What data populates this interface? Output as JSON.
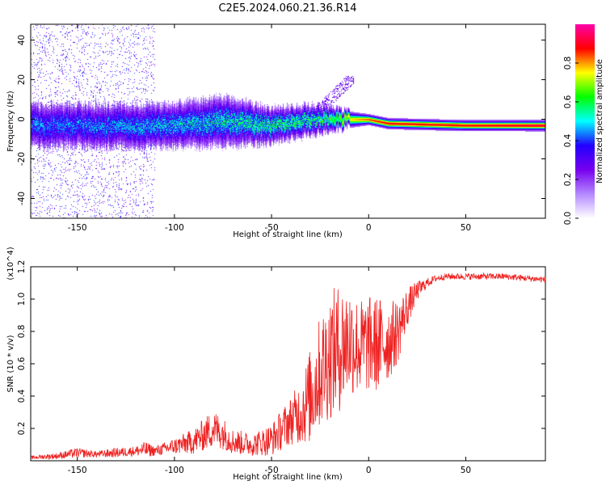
{
  "title": "C2E5.2024.060.21.36.R14",
  "colors": {
    "signal": "#ee2222",
    "background": "#ffffff",
    "colormap": [
      "#ffffff",
      "#b488ff",
      "#7700ee",
      "#2200ff",
      "#00ffff",
      "#00ff00",
      "#ffff00",
      "#ff0000",
      "#ff00aa"
    ]
  },
  "chart_data": [
    {
      "type": "heatmap",
      "name": "spectrogram",
      "xlabel": "Height of straight line (km)",
      "ylabel": "Frequency (Hz)",
      "xlim": [
        -174,
        91
      ],
      "ylim": [
        -50,
        48
      ],
      "xticks": [
        -150,
        -100,
        -50,
        0,
        50
      ],
      "xtick_labels": [
        "-150",
        "-100",
        "-50",
        "0",
        "50"
      ],
      "yticks": [
        -40,
        -20,
        0,
        20,
        40
      ],
      "ytick_labels": [
        "-40",
        "-20",
        "0",
        "20",
        "40"
      ],
      "colorbar": {
        "label": "Normalized spectral amplitude",
        "range": [
          0,
          1
        ],
        "ticks": [
          0.0,
          0.2,
          0.4,
          0.6,
          0.8
        ],
        "tick_labels": [
          "0.0",
          "0.2",
          "0.4",
          "0.6",
          "0.8"
        ]
      },
      "ridge": {
        "description_points_x": [
          -174,
          -150,
          -100,
          -75,
          -50,
          -30,
          -20,
          -10,
          0,
          10,
          50,
          91
        ],
        "center_freq_hz": [
          -3,
          -3,
          -3,
          -1,
          -3,
          0,
          0,
          0,
          0,
          -2,
          -3,
          -3
        ],
        "spread_hz": [
          9,
          9,
          9,
          10,
          7,
          6,
          5,
          3,
          2,
          2,
          2,
          2
        ],
        "peak_amplitude": [
          0.35,
          0.35,
          0.4,
          0.45,
          0.5,
          0.5,
          0.55,
          0.75,
          0.85,
          0.9,
          0.9,
          0.95
        ]
      }
    },
    {
      "type": "line",
      "name": "snr",
      "xlabel": "Height of straight line (km)",
      "ylabel": "SNR (10 * v/v)",
      "scale_label": "(x10^4)",
      "xlim": [
        -174,
        91
      ],
      "ylim": [
        0,
        1.2
      ],
      "xticks": [
        -150,
        -100,
        -50,
        0,
        50
      ],
      "xtick_labels": [
        "-150",
        "-100",
        "-50",
        "0",
        "50"
      ],
      "yticks": [
        0.2,
        0.4,
        0.6,
        0.8,
        1.0,
        1.2
      ],
      "ytick_labels": [
        "0.2",
        "0.4",
        "0.6",
        "0.8",
        "1.0",
        "1.2"
      ],
      "series": [
        {
          "name": "SNR",
          "x": [
            -174,
            -160,
            -150,
            -140,
            -130,
            -120,
            -115,
            -110,
            -100,
            -90,
            -80,
            -75,
            -70,
            -60,
            -50,
            -40,
            -35,
            -30,
            -25,
            -20,
            -15,
            -10,
            -5,
            0,
            5,
            10,
            15,
            20,
            25,
            30,
            35,
            40,
            50,
            60,
            70,
            80,
            91
          ],
          "values": [
            0.02,
            0.03,
            0.05,
            0.04,
            0.05,
            0.06,
            0.07,
            0.06,
            0.09,
            0.12,
            0.2,
            0.17,
            0.12,
            0.1,
            0.13,
            0.25,
            0.3,
            0.4,
            0.55,
            0.65,
            0.7,
            0.75,
            0.7,
            0.72,
            0.72,
            0.74,
            0.8,
            0.95,
            1.05,
            1.1,
            1.13,
            1.14,
            1.14,
            1.14,
            1.14,
            1.13,
            1.12
          ],
          "noise": [
            0.01,
            0.02,
            0.03,
            0.02,
            0.03,
            0.03,
            0.05,
            0.03,
            0.05,
            0.08,
            0.12,
            0.1,
            0.08,
            0.07,
            0.1,
            0.15,
            0.2,
            0.3,
            0.35,
            0.4,
            0.4,
            0.35,
            0.3,
            0.3,
            0.3,
            0.25,
            0.2,
            0.12,
            0.06,
            0.03,
            0.02,
            0.02,
            0.02,
            0.02,
            0.02,
            0.02,
            0.02
          ]
        }
      ]
    }
  ]
}
